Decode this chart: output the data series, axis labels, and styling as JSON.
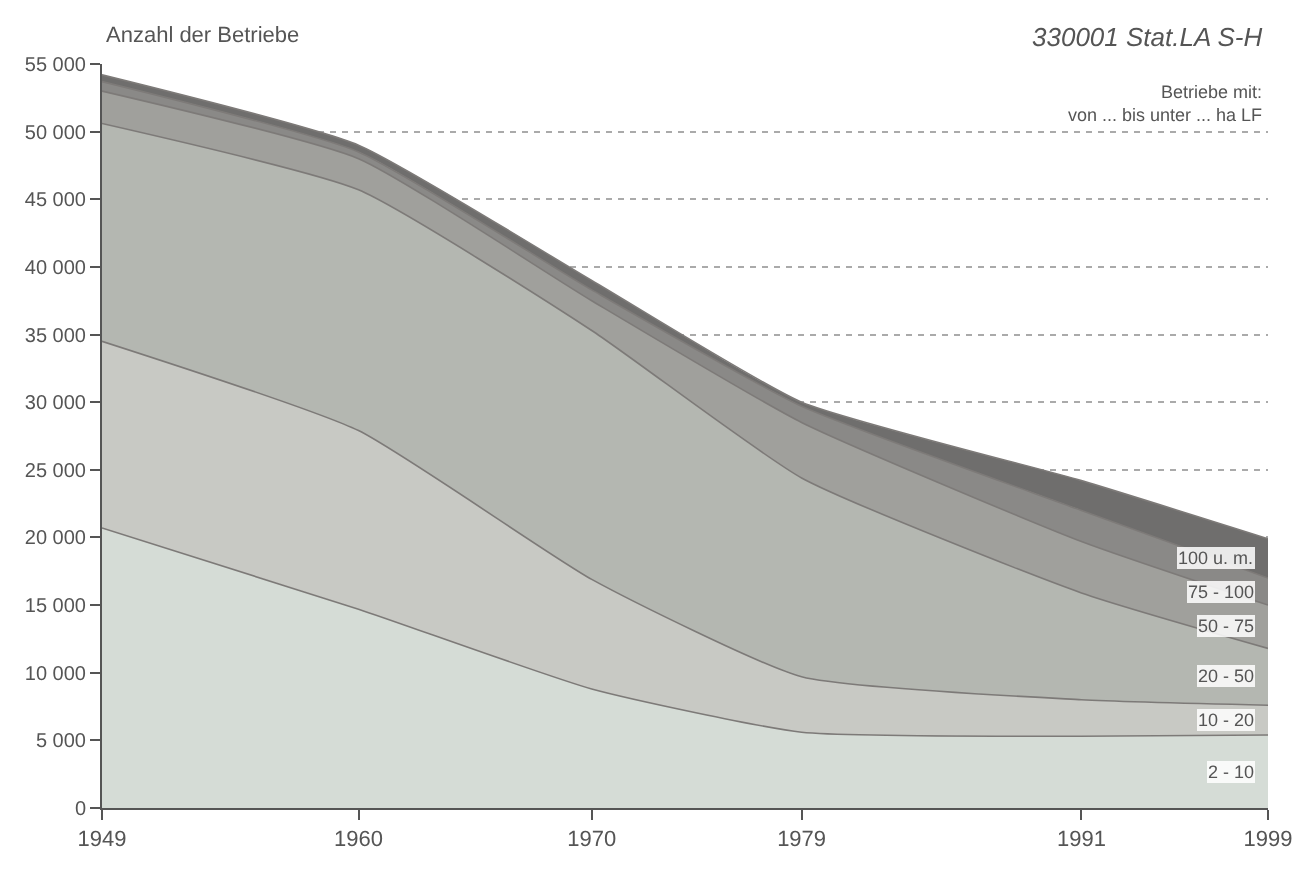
{
  "chart_data": {
    "type": "area",
    "stacked": true,
    "ylabel": "Anzahl der Betriebe",
    "legend_title": "Betriebe mit:\nvon ... bis unter ... ha LF",
    "annotations": [
      "330001 Stat.LA S-H"
    ],
    "x": [
      1949,
      1960,
      1970,
      1979,
      1991,
      1999
    ],
    "series": [
      {
        "name": "2 - 10",
        "color": "#d5dcd6",
        "values": [
          20700,
          14700,
          8800,
          5600,
          5300,
          5400
        ]
      },
      {
        "name": "10 - 20",
        "color": "#c8c9c4",
        "values": [
          13800,
          13200,
          8100,
          4100,
          2700,
          2200
        ]
      },
      {
        "name": "20 - 50",
        "color": "#b4b7b1",
        "values": [
          16100,
          17800,
          18400,
          14700,
          7900,
          4200
        ]
      },
      {
        "name": "50 - 75",
        "color": "#a0a09c",
        "values": [
          2400,
          2300,
          2200,
          4100,
          3800,
          3200
        ]
      },
      {
        "name": "75 - 100",
        "color": "#8a8987",
        "values": [
          700,
          500,
          800,
          1200,
          2300,
          2000
        ]
      },
      {
        "name": "100 u. m.",
        "color": "#6f6e6d",
        "values": [
          500,
          500,
          700,
          300,
          2200,
          2900
        ]
      }
    ],
    "xlim": [
      1949,
      1999
    ],
    "xticks": [
      1949,
      1960,
      1970,
      1979,
      1991,
      1999
    ],
    "ylim": [
      0,
      55000
    ],
    "yticks": [
      0,
      {
        "value": 5000,
        "label": "5 000"
      },
      {
        "value": 10000,
        "label": "10 000"
      },
      {
        "value": 15000,
        "label": "15 000"
      },
      {
        "value": 20000,
        "label": "20 000"
      },
      {
        "value": 25000,
        "label": "25 000"
      },
      {
        "value": 30000,
        "label": "30 000"
      },
      {
        "value": 35000,
        "label": "35 000"
      },
      {
        "value": 40000,
        "label": "40 000"
      },
      {
        "value": 45000,
        "label": "45 000"
      },
      {
        "value": 50000,
        "label": "50 000"
      },
      {
        "value": 55000,
        "label": "55 000"
      }
    ],
    "grid": "y",
    "legend": false
  }
}
